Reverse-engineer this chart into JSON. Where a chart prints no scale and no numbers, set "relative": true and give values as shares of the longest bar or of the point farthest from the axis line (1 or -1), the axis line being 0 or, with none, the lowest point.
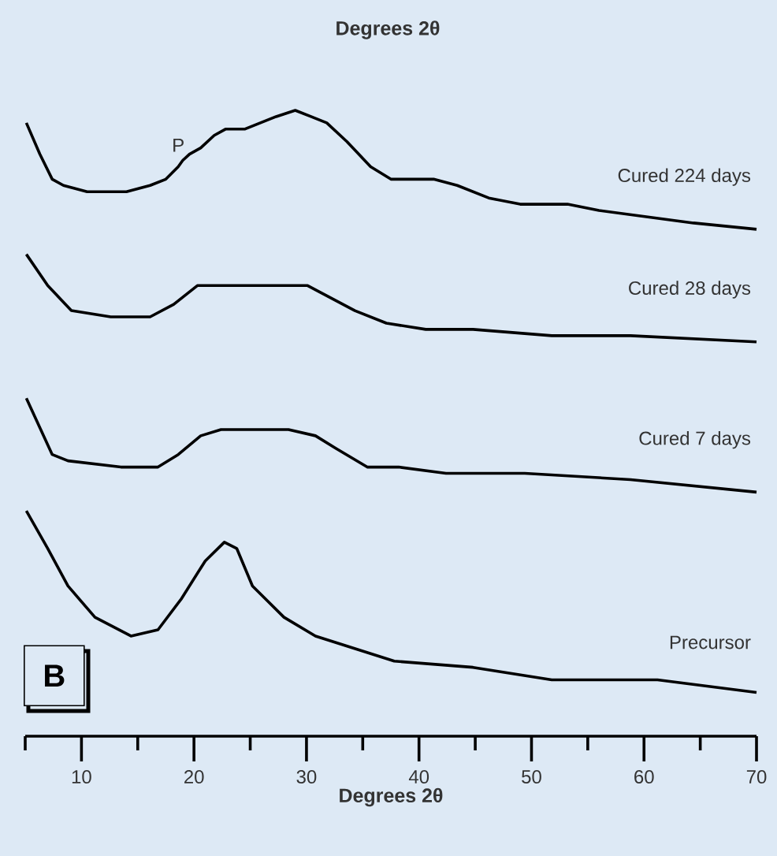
{
  "chart_data": {
    "type": "line",
    "relative": true,
    "xlabel": "Degrees 2θ",
    "xlim": [
      5,
      70
    ],
    "xticks": [
      {
        "value": 5,
        "label": null
      },
      10,
      {
        "value": 15,
        "label": null
      },
      20,
      {
        "value": 25,
        "label": null
      },
      30,
      {
        "value": 35,
        "label": null
      },
      40,
      {
        "value": 45,
        "label": null
      },
      50,
      {
        "value": 55,
        "label": null
      },
      60,
      {
        "value": 65,
        "label": null
      },
      70
    ],
    "annotations": [
      "Degrees 2θ",
      {
        "text": "P",
        "x": 18.6,
        "y": 0.91
      },
      "B"
    ],
    "series": [
      {
        "name": "Cured 224 days",
        "color": "#000000",
        "x": [
          5.1,
          6.3,
          7.4,
          8.4,
          10.5,
          14.0,
          16.1,
          17.5,
          18.6,
          19.0,
          19.6,
          20.6,
          21.8,
          22.8,
          23.5,
          24.5,
          25.9,
          27.3,
          29.0,
          30.4,
          31.8,
          33.6,
          35.7,
          37.5,
          38.9,
          40.3,
          41.3,
          43.4,
          46.2,
          49.0,
          53.2,
          56.0,
          60.2,
          64.4,
          70.0
        ],
        "values": [
          0.98,
          0.93,
          0.89,
          0.88,
          0.87,
          0.87,
          0.88,
          0.89,
          0.91,
          0.92,
          0.93,
          0.94,
          0.96,
          0.97,
          0.97,
          0.97,
          0.98,
          0.99,
          1.0,
          0.99,
          0.98,
          0.95,
          0.91,
          0.89,
          0.89,
          0.89,
          0.89,
          0.88,
          0.86,
          0.85,
          0.85,
          0.84,
          0.83,
          0.82,
          0.81
        ]
      },
      {
        "name": "Cured 28 days",
        "color": "#000000",
        "x": [
          5.1,
          7.0,
          9.1,
          12.6,
          16.1,
          18.2,
          20.3,
          23.1,
          27.3,
          30.1,
          32.2,
          34.3,
          37.1,
          40.6,
          44.8,
          51.8,
          58.8,
          70.0
        ],
        "values": [
          0.77,
          0.72,
          0.68,
          0.67,
          0.67,
          0.69,
          0.72,
          0.72,
          0.72,
          0.72,
          0.7,
          0.68,
          0.66,
          0.65,
          0.65,
          0.64,
          0.64,
          0.63
        ]
      },
      {
        "name": "Cured 7 days",
        "color": "#000000",
        "x": [
          5.1,
          7.4,
          8.8,
          13.5,
          16.8,
          18.6,
          20.6,
          22.4,
          25.2,
          28.4,
          30.8,
          32.6,
          35.4,
          38.2,
          42.4,
          49.4,
          58.8,
          70.0
        ],
        "values": [
          0.54,
          0.45,
          0.44,
          0.43,
          0.43,
          0.45,
          0.48,
          0.49,
          0.49,
          0.49,
          0.48,
          0.46,
          0.43,
          0.43,
          0.42,
          0.42,
          0.41,
          0.39
        ]
      },
      {
        "name": "Precursor",
        "color": "#000000",
        "x": [
          5.1,
          7.0,
          8.8,
          11.2,
          14.4,
          16.8,
          18.9,
          21.0,
          22.7,
          23.8,
          25.2,
          28.0,
          30.8,
          37.8,
          44.8,
          51.8,
          61.2,
          70.0
        ],
        "values": [
          0.36,
          0.3,
          0.24,
          0.19,
          0.16,
          0.17,
          0.22,
          0.28,
          0.31,
          0.3,
          0.24,
          0.19,
          0.16,
          0.12,
          0.11,
          0.09,
          0.09,
          0.07
        ]
      }
    ]
  }
}
